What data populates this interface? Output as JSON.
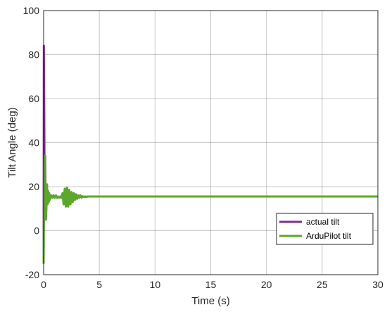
{
  "chart_data": {
    "type": "line",
    "xlabel": "Time (s)",
    "ylabel": "Tilt Angle (deg)",
    "xlim": [
      0,
      30
    ],
    "ylim": [
      -20,
      100
    ],
    "xticks": [
      0,
      5,
      10,
      15,
      20,
      25,
      30
    ],
    "yticks": [
      -20,
      0,
      20,
      40,
      60,
      80,
      100
    ],
    "grid": true,
    "legend_position": "lower-right",
    "series": [
      {
        "name": "actual tilt",
        "color": "#7E2F8E",
        "x": [
          0,
          0.02,
          0.05,
          0.08,
          0.1,
          0.13,
          0.16,
          0.2,
          0.25,
          0.3,
          0.35,
          0.4,
          0.45,
          0.5,
          0.55,
          0.6,
          0.65,
          0.7,
          0.8,
          0.9,
          1.0,
          1.1,
          1.2,
          1.3,
          1.4,
          1.5,
          1.6,
          1.7,
          1.8,
          1.9,
          2.0,
          2.1,
          2.2,
          2.3,
          2.4,
          2.5,
          2.6,
          2.7,
          2.8,
          2.9,
          3.0,
          3.1,
          3.2,
          3.3,
          3.4,
          3.5,
          3.6,
          3.7,
          3.8,
          4.0,
          4.5,
          5.0,
          30
        ],
        "y": [
          -15,
          84,
          60,
          25,
          10,
          34,
          22,
          5,
          15,
          21,
          12,
          18,
          13,
          17,
          14,
          16,
          15,
          16,
          15,
          16,
          15,
          16,
          15,
          15.5,
          15,
          15.5,
          15,
          17,
          12,
          19,
          11,
          19.5,
          11,
          18.5,
          12,
          17.5,
          13,
          17,
          14,
          16.5,
          14.5,
          16,
          15,
          16,
          15,
          15.6,
          15.3,
          15.5,
          15.4,
          15.5,
          15.5,
          15.5,
          15.5
        ]
      },
      {
        "name": "ArduPilot tilt",
        "color": "#5BA82A",
        "x": [
          0,
          0.05,
          0.1,
          0.15,
          0.2,
          0.25,
          0.3,
          0.35,
          0.4,
          0.45,
          0.5,
          0.55,
          0.6,
          0.65,
          0.7,
          0.8,
          0.9,
          1.0,
          1.1,
          1.2,
          1.3,
          1.4,
          1.5,
          1.6,
          1.7,
          1.8,
          1.9,
          2.0,
          2.1,
          2.2,
          2.3,
          2.4,
          2.5,
          2.6,
          2.7,
          2.8,
          2.9,
          3.0,
          3.1,
          3.2,
          3.3,
          3.4,
          3.5,
          3.6,
          3.7,
          3.8,
          4.0,
          4.5,
          5.0,
          30
        ],
        "y": [
          -15,
          30,
          34,
          20,
          5,
          10,
          21,
          12,
          18,
          13,
          17,
          14,
          16,
          15,
          16,
          15,
          16,
          15,
          16,
          15,
          15.5,
          15,
          15.5,
          15,
          17,
          12,
          19,
          11,
          19.5,
          11,
          18.5,
          12,
          17.5,
          13,
          17,
          14,
          16.5,
          14.5,
          16,
          15,
          16,
          15,
          15.6,
          15.3,
          15.5,
          15.4,
          15.5,
          15.5,
          15.5,
          15.5
        ]
      }
    ]
  }
}
